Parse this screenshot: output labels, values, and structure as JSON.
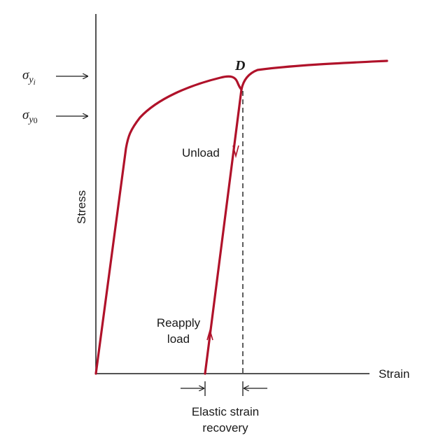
{
  "colors": {
    "curve": "#b0122a",
    "axis": "#1a1a1a",
    "background": "#ffffff"
  },
  "labels": {
    "x_axis": "Strain",
    "y_axis": "Stress",
    "point": "D",
    "unload": "Unload",
    "reapply_line1": "Reapply",
    "reapply_line2": "load",
    "recovery_line1": "Elastic strain",
    "recovery_line2": "recovery",
    "sigma_symbol": "σ",
    "sigma_yi_sub": "y",
    "sigma_yi_subsub": "i",
    "sigma_y0_sub": "y",
    "sigma_y0_subsub": "0"
  }
}
